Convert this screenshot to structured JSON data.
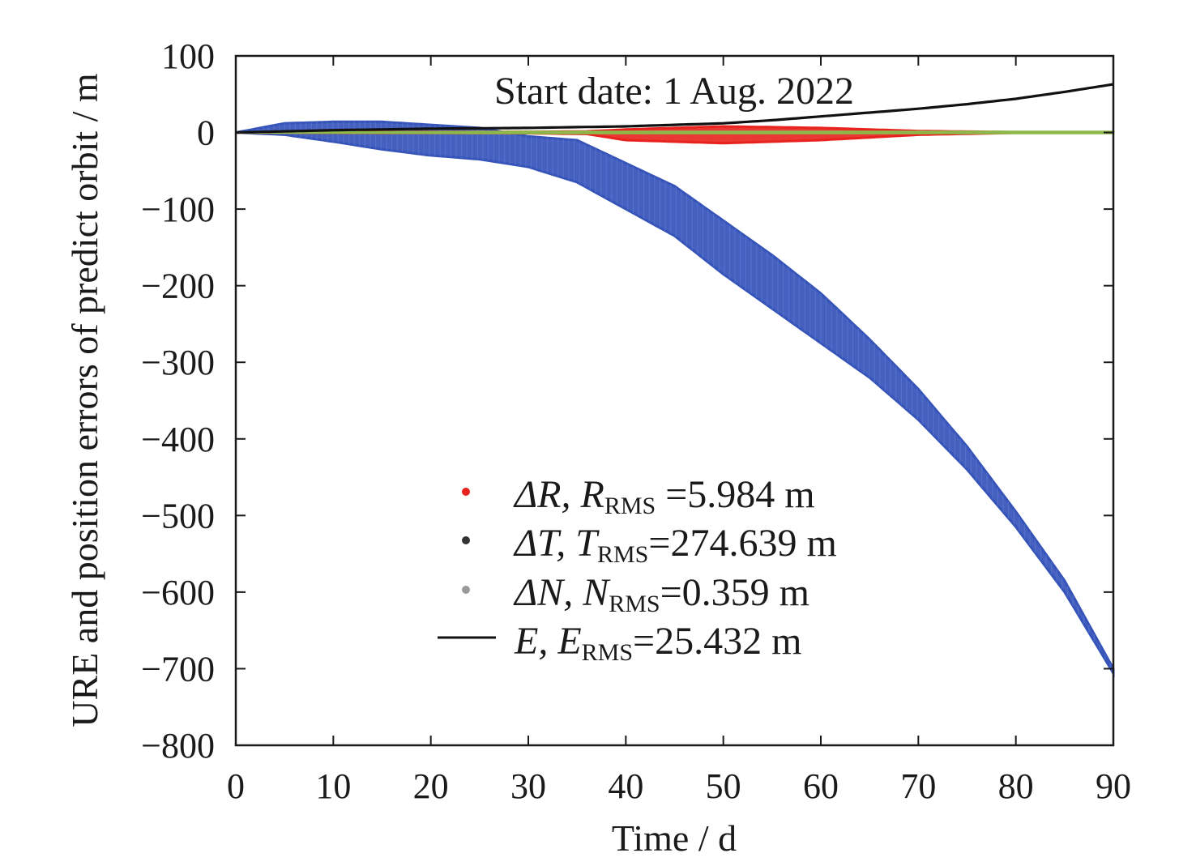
{
  "chart_data": {
    "type": "scatter",
    "xlabel": "Time / d",
    "ylabel": "URE and position errors of predict orbit / m",
    "annotation": "Start date: 1 Aug. 2022",
    "xlim": [
      0,
      90
    ],
    "ylim": [
      -800,
      100
    ],
    "xticks": [
      "0",
      "10",
      "20",
      "30",
      "40",
      "50",
      "60",
      "70",
      "80",
      "90"
    ],
    "yticks": [
      "100",
      "0",
      "−100",
      "−200",
      "−300",
      "−400",
      "−500",
      "−600",
      "−700",
      "−800"
    ],
    "grid": false,
    "legend_position": "center-right",
    "series": [
      {
        "label_main": "ΔR, R",
        "label_sub": "RMS",
        "label_value": " =5.984 m",
        "style": "dots",
        "color": "#e8231e",
        "envelope_x": [
          0,
          10,
          20,
          30,
          36,
          40,
          50,
          60,
          70,
          80,
          90
        ],
        "upper": [
          0,
          0.5,
          0.8,
          1,
          1.5,
          4,
          8,
          6,
          2,
          0.5,
          0.5
        ],
        "lower": [
          0,
          -0.5,
          -0.8,
          -1,
          -2,
          -10,
          -14,
          -10,
          -3,
          -0.5,
          -0.5
        ]
      },
      {
        "label_main": "ΔT, T",
        "label_sub": "RMS",
        "label_value": "=274.639 m",
        "style": "dots",
        "color": "#3553b8",
        "envelope_x": [
          0,
          5,
          10,
          15,
          20,
          25,
          30,
          35,
          40,
          45,
          50,
          55,
          60,
          65,
          70,
          75,
          80,
          85,
          90
        ],
        "upper": [
          0,
          12,
          14,
          14,
          10,
          6,
          -5,
          -10,
          -40,
          -70,
          -115,
          -160,
          -210,
          -270,
          -335,
          -410,
          -495,
          -585,
          -700
        ],
        "lower": [
          0,
          -3,
          -12,
          -22,
          -30,
          -35,
          -45,
          -65,
          -100,
          -135,
          -185,
          -230,
          -275,
          -320,
          -375,
          -440,
          -515,
          -600,
          -706
        ]
      },
      {
        "label_main": "ΔN, N",
        "label_sub": "RMS",
        "label_value": "=0.359 m",
        "style": "dots",
        "color": "#8db94a",
        "envelope_x": [
          0,
          30,
          60,
          90
        ],
        "upper": [
          0,
          0.8,
          0.8,
          0.8
        ],
        "lower": [
          0,
          -0.8,
          -0.8,
          -0.8
        ]
      },
      {
        "label_main": "E, E",
        "label_sub": "RMS",
        "label_value": "=25.432 m",
        "style": "line",
        "color": "#111111",
        "x": [
          0,
          10,
          20,
          30,
          40,
          50,
          55,
          60,
          65,
          70,
          75,
          80,
          85,
          90
        ],
        "y": [
          0,
          3,
          5,
          6,
          8,
          12,
          16,
          21,
          26,
          31,
          37,
          44,
          53,
          63
        ]
      }
    ]
  },
  "colors": {
    "legend_marker_r": "#e8231e",
    "legend_marker_t": "#333333",
    "legend_marker_n": "#999999",
    "e_line": "#111111",
    "t_band_edge": "#5b7fd6"
  }
}
